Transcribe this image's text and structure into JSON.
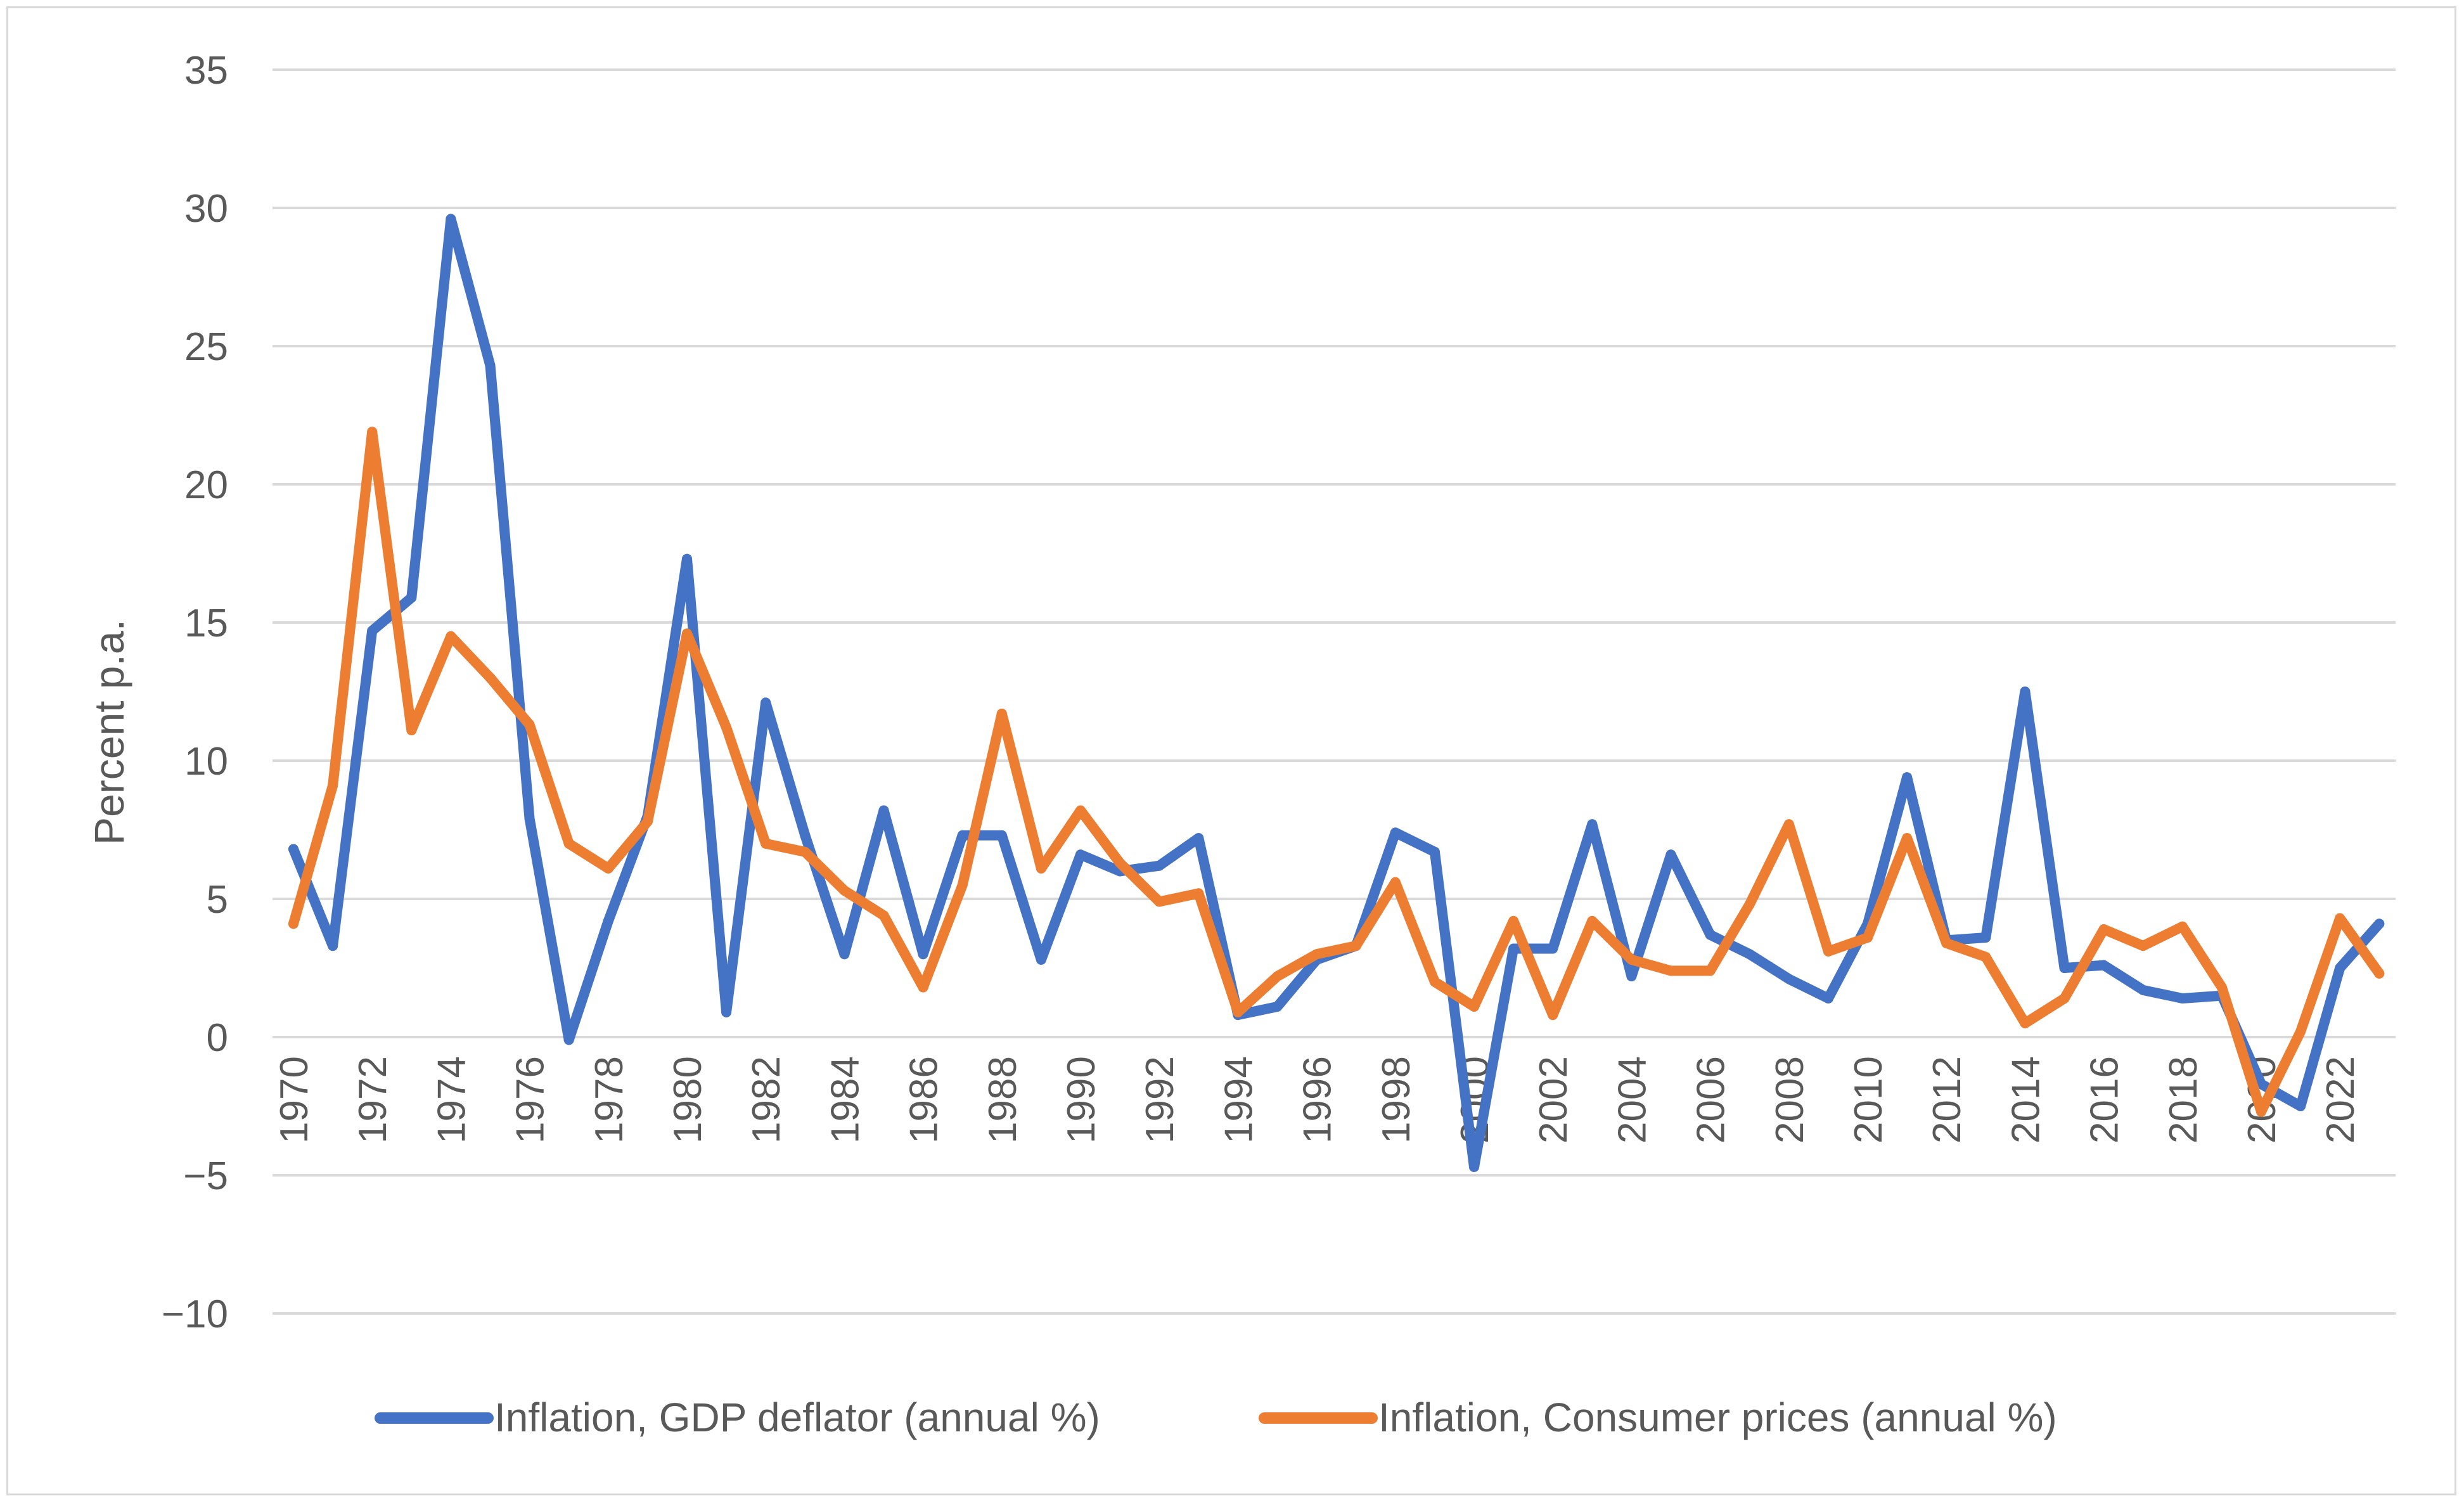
{
  "chart_data": {
    "type": "line",
    "title": "",
    "xlabel": "",
    "ylabel": "Percent p.a.",
    "ylim": [
      -10,
      35
    ],
    "yticks": [
      -10,
      -5,
      0,
      5,
      10,
      15,
      20,
      25,
      30,
      35
    ],
    "ytick_labels": [
      "−10",
      "−5",
      "0",
      "5",
      "10",
      "15",
      "20",
      "25",
      "30",
      "35"
    ],
    "xtick_labels": [
      "1970",
      "1972",
      "1974",
      "1976",
      "1978",
      "1980",
      "1982",
      "1984",
      "1986",
      "1988",
      "1990",
      "1992",
      "1994",
      "1996",
      "1998",
      "2000",
      "2002",
      "2004",
      "2006",
      "2008",
      "2010",
      "2012",
      "2014",
      "2016",
      "2018",
      "2020",
      "2022"
    ],
    "grid": true,
    "legend_position": "bottom",
    "x": [
      1970,
      1971,
      1972,
      1973,
      1974,
      1975,
      1976,
      1977,
      1978,
      1979,
      1980,
      1981,
      1982,
      1983,
      1984,
      1985,
      1986,
      1987,
      1988,
      1989,
      1990,
      1991,
      1992,
      1993,
      1994,
      1995,
      1996,
      1997,
      1998,
      1999,
      2000,
      2001,
      2002,
      2003,
      2004,
      2005,
      2006,
      2007,
      2008,
      2009,
      2010,
      2011,
      2012,
      2013,
      2014,
      2015,
      2016,
      2017,
      2018,
      2019,
      2020,
      2021,
      2022,
      2023
    ],
    "series": [
      {
        "name": "Inflation, GDP deflator (annual %)",
        "color": "#4472c4",
        "values": [
          6.8,
          3.3,
          14.7,
          15.9,
          29.6,
          24.3,
          7.9,
          -0.1,
          4.2,
          8.0,
          17.3,
          0.9,
          12.1,
          7.3,
          3.0,
          8.2,
          3.0,
          7.3,
          7.3,
          2.8,
          6.6,
          6.0,
          6.2,
          7.2,
          0.8,
          1.1,
          2.8,
          3.3,
          7.4,
          6.7,
          -4.7,
          3.2,
          3.2,
          7.7,
          2.2,
          6.6,
          3.7,
          3.0,
          2.1,
          1.4,
          4.1,
          9.4,
          3.5,
          3.6,
          12.5,
          2.5,
          2.6,
          1.7,
          1.4,
          1.5,
          -1.7,
          -2.5,
          2.5,
          4.1
        ]
      },
      {
        "name": "Inflation, Consumer prices (annual %)",
        "color": "#ed7d31",
        "values": [
          4.1,
          9.1,
          21.9,
          11.1,
          14.5,
          13.0,
          11.3,
          7.0,
          6.1,
          7.8,
          14.6,
          11.2,
          7.0,
          6.7,
          5.3,
          4.4,
          1.8,
          5.5,
          11.7,
          6.1,
          8.2,
          6.3,
          4.9,
          5.2,
          0.9,
          2.2,
          3.0,
          3.3,
          5.6,
          2.0,
          1.1,
          4.2,
          0.8,
          4.2,
          2.8,
          2.4,
          2.4,
          4.8,
          7.7,
          3.1,
          3.6,
          7.2,
          3.4,
          2.9,
          0.5,
          1.4,
          3.9,
          3.3,
          4.0,
          1.8,
          -2.7,
          0.2,
          4.3,
          2.3
        ]
      }
    ]
  }
}
